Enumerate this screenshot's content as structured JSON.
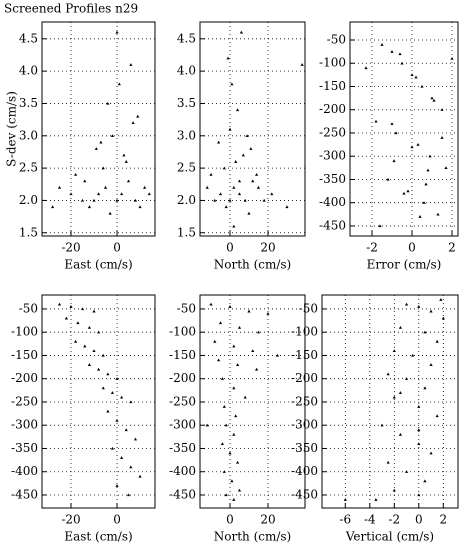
{
  "chart_data": [
    {
      "type": "scatter",
      "title": "Screened Profiles n29",
      "xlabel": "East (cm/s)",
      "ylabel": "S-dev (cm/s)",
      "xlim": [
        -32.6,
        16.5
      ],
      "ylim": [
        1.45,
        4.76
      ],
      "xticks": [
        -20,
        0
      ],
      "yticks": [
        1.5,
        {
          "value": 2,
          "label": "2.0"
        },
        2.5,
        {
          "value": 3,
          "label": "3.0"
        },
        3.5,
        {
          "value": 4,
          "label": "4.0"
        },
        4.5
      ],
      "x": [
        -25,
        -20,
        -15,
        -12,
        -10,
        -8,
        -5,
        -3,
        0,
        2,
        5,
        8,
        10,
        -18,
        -6,
        4,
        12,
        -9,
        -2,
        3,
        7,
        -14,
        -4,
        1,
        6,
        -7,
        0,
        9,
        14,
        -28
      ],
      "y": [
        2.2,
        2.1,
        2.0,
        1.9,
        2.0,
        2.1,
        2.2,
        1.8,
        2.0,
        2.1,
        2.3,
        2.0,
        1.9,
        2.4,
        2.5,
        2.6,
        2.2,
        2.8,
        3.0,
        2.7,
        3.2,
        2.3,
        3.5,
        3.8,
        4.1,
        2.9,
        4.6,
        3.3,
        2.1,
        1.9
      ]
    },
    {
      "type": "scatter",
      "xlabel": "North (cm/s)",
      "xlim": [
        -15.8,
        39.5
      ],
      "ylim": [
        1.45,
        4.76
      ],
      "xticks": [
        0,
        20
      ],
      "yticks": [
        1.5,
        {
          "value": 2,
          "label": "2.0"
        },
        2.5,
        {
          "value": 3,
          "label": "3.0"
        },
        3.5,
        {
          "value": 4,
          "label": "4.0"
        },
        4.5
      ],
      "x": [
        -8,
        -5,
        -2,
        0,
        2,
        5,
        8,
        10,
        12,
        15,
        -10,
        -3,
        3,
        7,
        18,
        -6,
        0,
        4,
        9,
        1,
        -1,
        6,
        14,
        22,
        30,
        38,
        -12,
        11,
        2,
        5
      ],
      "y": [
        2.0,
        2.1,
        1.9,
        2.0,
        2.2,
        2.1,
        2.0,
        1.8,
        2.3,
        2.2,
        2.4,
        2.5,
        2.6,
        2.7,
        2.0,
        2.9,
        3.1,
        3.4,
        3.0,
        3.8,
        4.2,
        4.6,
        2.4,
        2.1,
        1.9,
        4.1,
        2.2,
        2.8,
        1.6,
        2.3
      ]
    },
    {
      "type": "scatter",
      "xlabel": "Error (cm/s)",
      "xlim": [
        -3.1,
        2.3
      ],
      "ylim": [
        -471.6,
        -11.3
      ],
      "xticks": [
        -2,
        0,
        2
      ],
      "yticks": [
        -50,
        -100,
        -150,
        -200,
        -250,
        -300,
        -350,
        -400,
        -450
      ],
      "x": [
        -1.5,
        -1,
        -0.5,
        0,
        0.5,
        1,
        1.5,
        -1.8,
        -0.8,
        0.3,
        0.9,
        1.7,
        -1.2,
        -0.2,
        0.6,
        1.3,
        -1.6,
        -0.6,
        0.2,
        1.1,
        -1,
        0,
        0.8,
        -0.4,
        0.4,
        -2.3,
        2.0,
        -0.9,
        0.7,
        1.5
      ],
      "y": [
        -60,
        -75,
        -100,
        -125,
        -150,
        -175,
        -200,
        -225,
        -250,
        -275,
        -300,
        -325,
        -350,
        -375,
        -400,
        -425,
        -450,
        -80,
        -130,
        -180,
        -230,
        -280,
        -330,
        -380,
        -430,
        -110,
        -90,
        -310,
        -360,
        -260
      ]
    },
    {
      "type": "scatter",
      "xlabel": "East (cm/s)",
      "xlim": [
        -32.6,
        16.5
      ],
      "ylim": [
        -478,
        -20
      ],
      "xticks": [
        -20,
        0
      ],
      "yticks": [
        -50,
        -100,
        -150,
        -200,
        -250,
        -300,
        -350,
        -400,
        -450
      ],
      "x": [
        -25,
        -20,
        -15,
        -10,
        -22,
        -17,
        -12,
        -8,
        -18,
        -14,
        -10,
        -6,
        -12,
        -8,
        -4,
        0,
        -6,
        -2,
        2,
        6,
        -4,
        0,
        4,
        8,
        -2,
        2,
        6,
        10,
        0,
        5
      ],
      "y": [
        -40,
        -45,
        -50,
        -55,
        -70,
        -80,
        -90,
        -100,
        -120,
        -130,
        -140,
        -150,
        -170,
        -180,
        -190,
        -200,
        -220,
        -230,
        -240,
        -250,
        -270,
        -290,
        -310,
        -330,
        -350,
        -370,
        -390,
        -410,
        -430,
        -450
      ]
    },
    {
      "type": "scatter",
      "xlabel": "North (cm/s)",
      "xlim": [
        -15.8,
        39.5
      ],
      "ylim": [
        -478,
        -20
      ],
      "xticks": [
        0,
        20
      ],
      "yticks": [
        -50,
        -100,
        -150,
        -200,
        -250,
        -300,
        -350,
        -400,
        -450
      ],
      "x": [
        -10,
        0,
        10,
        20,
        -5,
        5,
        15,
        -8,
        2,
        12,
        -6,
        4,
        14,
        -4,
        2,
        8,
        -3,
        3,
        -2,
        2,
        -4,
        0,
        4,
        -3,
        1,
        5,
        -2,
        2,
        -12,
        25
      ],
      "y": [
        -40,
        -45,
        -55,
        -60,
        -80,
        -90,
        -100,
        -120,
        -130,
        -140,
        -160,
        -170,
        -180,
        -200,
        -220,
        -240,
        -260,
        -280,
        -300,
        -320,
        -340,
        -360,
        -380,
        -400,
        -420,
        -440,
        -450,
        -460,
        -300,
        -150
      ]
    },
    {
      "type": "scatter",
      "xlabel": "Vertical (cm/s)",
      "xlim": [
        -7.9,
        3.2
      ],
      "ylim": [
        -478,
        -20
      ],
      "xticks": [
        -6,
        -4,
        -2,
        0,
        2
      ],
      "yticks": [
        -50,
        -100,
        -150,
        -200,
        -250,
        -300,
        -350,
        -400,
        -450
      ],
      "x": [
        -1,
        0,
        1,
        2,
        -1.5,
        0.5,
        1.5,
        -2,
        -0.5,
        1,
        -2.5,
        -1,
        0.5,
        -2,
        0,
        1.5,
        -3,
        -1.5,
        0,
        1,
        -2.5,
        -1,
        0.5,
        -2,
        0,
        -3.5,
        -1.5,
        0,
        -6,
        1.8
      ],
      "y": [
        -40,
        -45,
        -55,
        -70,
        -90,
        -100,
        -120,
        -140,
        -150,
        -170,
        -190,
        -200,
        -220,
        -240,
        -260,
        -280,
        -300,
        -320,
        -340,
        -360,
        -380,
        -400,
        -420,
        -440,
        -450,
        -460,
        -230,
        -310,
        -460,
        -30
      ]
    }
  ]
}
